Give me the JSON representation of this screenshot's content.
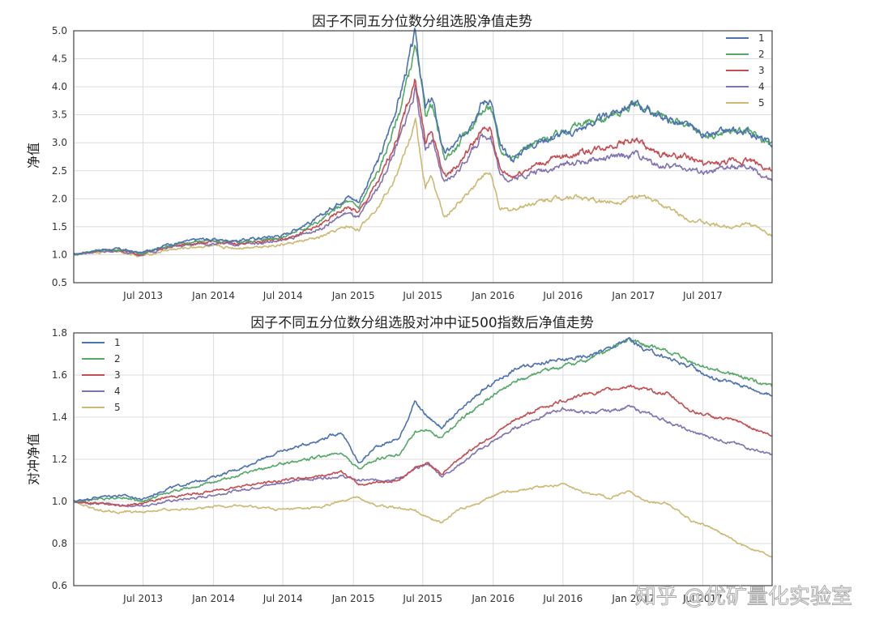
{
  "watermark": "知乎 @优矿量化实验室",
  "palette": {
    "1": "#4c72b0",
    "2": "#55a868",
    "3": "#c44e52",
    "4": "#8172b2",
    "5": "#ccb974"
  },
  "chart_data": [
    {
      "type": "line",
      "title": "因子不同五分位数分组选股净值走势",
      "xlabel": "",
      "ylabel": "净值",
      "x_tick_labels": [
        "Jul 2013",
        "Jan 2014",
        "Jul 2014",
        "Jan 2015",
        "Jul 2015",
        "Jan 2016",
        "Jul 2016",
        "Jan 2017",
        "Jul 2017"
      ],
      "y_ticks": [
        "0.5",
        "1.0",
        "1.5",
        "2.0",
        "2.5",
        "3.0",
        "3.5",
        "4.0",
        "4.5",
        "5.0"
      ],
      "ylim": [
        0.5,
        5.0
      ],
      "x_range": [
        "2013-01-01",
        "2017-12-29"
      ],
      "grid": true,
      "legend_position": "top-right",
      "x": [
        "2013-01-01",
        "2013-03-01",
        "2013-05-01",
        "2013-06-25",
        "2013-09-01",
        "2013-12-01",
        "2014-03-01",
        "2014-07-01",
        "2014-10-01",
        "2014-12-15",
        "2015-01-15",
        "2015-03-15",
        "2015-05-01",
        "2015-06-12",
        "2015-07-08",
        "2015-07-25",
        "2015-08-26",
        "2015-10-01",
        "2015-12-01",
        "2015-12-25",
        "2016-01-20",
        "2016-02-20",
        "2016-04-01",
        "2016-06-01",
        "2016-08-01",
        "2016-10-01",
        "2016-11-25",
        "2017-01-10",
        "2017-03-01",
        "2017-05-20",
        "2017-07-15",
        "2017-09-01",
        "2017-11-01",
        "2017-12-29"
      ],
      "series": [
        {
          "name": "1",
          "values": [
            1.0,
            1.08,
            1.1,
            1.03,
            1.18,
            1.28,
            1.25,
            1.35,
            1.65,
            2.05,
            1.95,
            2.8,
            3.8,
            4.95,
            3.6,
            3.8,
            2.8,
            3.0,
            3.7,
            3.8,
            2.9,
            2.7,
            2.95,
            3.1,
            3.2,
            3.4,
            3.6,
            3.7,
            3.5,
            3.3,
            3.1,
            3.2,
            3.2,
            2.95
          ]
        },
        {
          "name": "2",
          "values": [
            1.0,
            1.08,
            1.09,
            1.02,
            1.16,
            1.25,
            1.22,
            1.32,
            1.58,
            1.95,
            1.85,
            2.6,
            3.55,
            4.7,
            3.5,
            3.7,
            2.7,
            2.95,
            3.55,
            3.65,
            2.85,
            2.75,
            2.95,
            3.1,
            3.3,
            3.4,
            3.55,
            3.7,
            3.5,
            3.3,
            3.1,
            3.2,
            3.2,
            2.95
          ]
        },
        {
          "name": "3",
          "values": [
            1.0,
            1.07,
            1.08,
            1.01,
            1.14,
            1.22,
            1.2,
            1.28,
            1.5,
            1.85,
            1.75,
            2.4,
            3.2,
            4.15,
            3.0,
            3.2,
            2.4,
            2.6,
            3.2,
            3.25,
            2.5,
            2.4,
            2.55,
            2.7,
            2.8,
            2.9,
            3.0,
            3.05,
            2.8,
            2.75,
            2.6,
            2.65,
            2.7,
            2.5
          ]
        },
        {
          "name": "4",
          "values": [
            1.0,
            1.06,
            1.07,
            1.0,
            1.12,
            1.2,
            1.18,
            1.25,
            1.45,
            1.75,
            1.65,
            2.3,
            3.05,
            3.95,
            2.9,
            3.05,
            2.25,
            2.5,
            3.1,
            3.15,
            2.4,
            2.35,
            2.45,
            2.55,
            2.65,
            2.7,
            2.75,
            2.8,
            2.6,
            2.55,
            2.45,
            2.55,
            2.55,
            2.3
          ]
        },
        {
          "name": "5",
          "values": [
            1.0,
            1.05,
            1.06,
            0.97,
            1.08,
            1.15,
            1.12,
            1.18,
            1.3,
            1.5,
            1.45,
            1.95,
            2.55,
            3.35,
            2.2,
            2.4,
            1.65,
            1.9,
            2.4,
            2.45,
            1.8,
            1.8,
            1.9,
            2.0,
            2.05,
            1.95,
            1.95,
            2.05,
            1.95,
            1.65,
            1.55,
            1.5,
            1.55,
            1.35
          ]
        }
      ]
    },
    {
      "type": "line",
      "title": "因子不同五分位数分组选股对冲中证500指数后净值走势",
      "xlabel": "",
      "ylabel": "对冲净值",
      "x_tick_labels": [
        "Jul 2013",
        "Jan 2014",
        "Jul 2014",
        "Jan 2015",
        "Jul 2015",
        "Jan 2016",
        "Jul 2016",
        "Jan 2017",
        "Jul 2017"
      ],
      "y_ticks": [
        "0.6",
        "0.8",
        "1.0",
        "1.2",
        "1.4",
        "1.6",
        "1.8"
      ],
      "ylim": [
        0.6,
        1.8
      ],
      "x_range": [
        "2013-01-01",
        "2017-12-29"
      ],
      "grid": true,
      "legend_position": "top-left",
      "x": [
        "2013-01-01",
        "2013-03-01",
        "2013-05-01",
        "2013-07-01",
        "2013-09-01",
        "2013-12-01",
        "2014-03-01",
        "2014-07-01",
        "2014-10-01",
        "2014-12-01",
        "2015-01-15",
        "2015-03-01",
        "2015-05-01",
        "2015-06-10",
        "2015-07-15",
        "2015-08-20",
        "2015-10-01",
        "2015-12-01",
        "2016-01-15",
        "2016-03-01",
        "2016-05-01",
        "2016-07-01",
        "2016-09-01",
        "2016-11-01",
        "2016-12-20",
        "2017-02-01",
        "2017-04-01",
        "2017-06-01",
        "2017-08-01",
        "2017-10-01",
        "2017-12-29"
      ],
      "series": [
        {
          "name": "1",
          "values": [
            1.0,
            1.02,
            1.03,
            1.01,
            1.06,
            1.1,
            1.15,
            1.24,
            1.29,
            1.33,
            1.18,
            1.26,
            1.3,
            1.47,
            1.4,
            1.35,
            1.42,
            1.52,
            1.58,
            1.63,
            1.66,
            1.67,
            1.69,
            1.73,
            1.77,
            1.72,
            1.68,
            1.64,
            1.58,
            1.56,
            1.5
          ]
        },
        {
          "name": "2",
          "values": [
            1.0,
            1.01,
            1.02,
            1.0,
            1.04,
            1.08,
            1.12,
            1.18,
            1.21,
            1.23,
            1.15,
            1.2,
            1.22,
            1.33,
            1.34,
            1.3,
            1.38,
            1.46,
            1.52,
            1.57,
            1.61,
            1.64,
            1.67,
            1.72,
            1.77,
            1.74,
            1.71,
            1.66,
            1.62,
            1.6,
            1.54
          ]
        },
        {
          "name": "3",
          "values": [
            1.0,
            0.99,
            0.98,
            0.99,
            1.02,
            1.04,
            1.07,
            1.1,
            1.12,
            1.14,
            1.08,
            1.09,
            1.1,
            1.16,
            1.18,
            1.13,
            1.2,
            1.28,
            1.33,
            1.39,
            1.44,
            1.48,
            1.51,
            1.53,
            1.55,
            1.53,
            1.51,
            1.43,
            1.4,
            1.38,
            1.31
          ]
        },
        {
          "name": "4",
          "values": [
            1.0,
            0.99,
            0.98,
            0.98,
            1.0,
            1.02,
            1.05,
            1.09,
            1.11,
            1.12,
            1.1,
            1.1,
            1.11,
            1.15,
            1.18,
            1.12,
            1.17,
            1.25,
            1.3,
            1.35,
            1.4,
            1.44,
            1.42,
            1.43,
            1.45,
            1.42,
            1.38,
            1.33,
            1.3,
            1.27,
            1.22
          ]
        },
        {
          "name": "5",
          "values": [
            1.0,
            0.96,
            0.95,
            0.95,
            0.96,
            0.97,
            0.98,
            0.96,
            0.97,
            1.0,
            1.02,
            0.98,
            0.97,
            0.96,
            0.92,
            0.9,
            0.96,
            1.0,
            1.04,
            1.05,
            1.07,
            1.08,
            1.04,
            1.02,
            1.05,
            1.0,
            0.99,
            0.91,
            0.87,
            0.8,
            0.74
          ]
        }
      ]
    }
  ]
}
